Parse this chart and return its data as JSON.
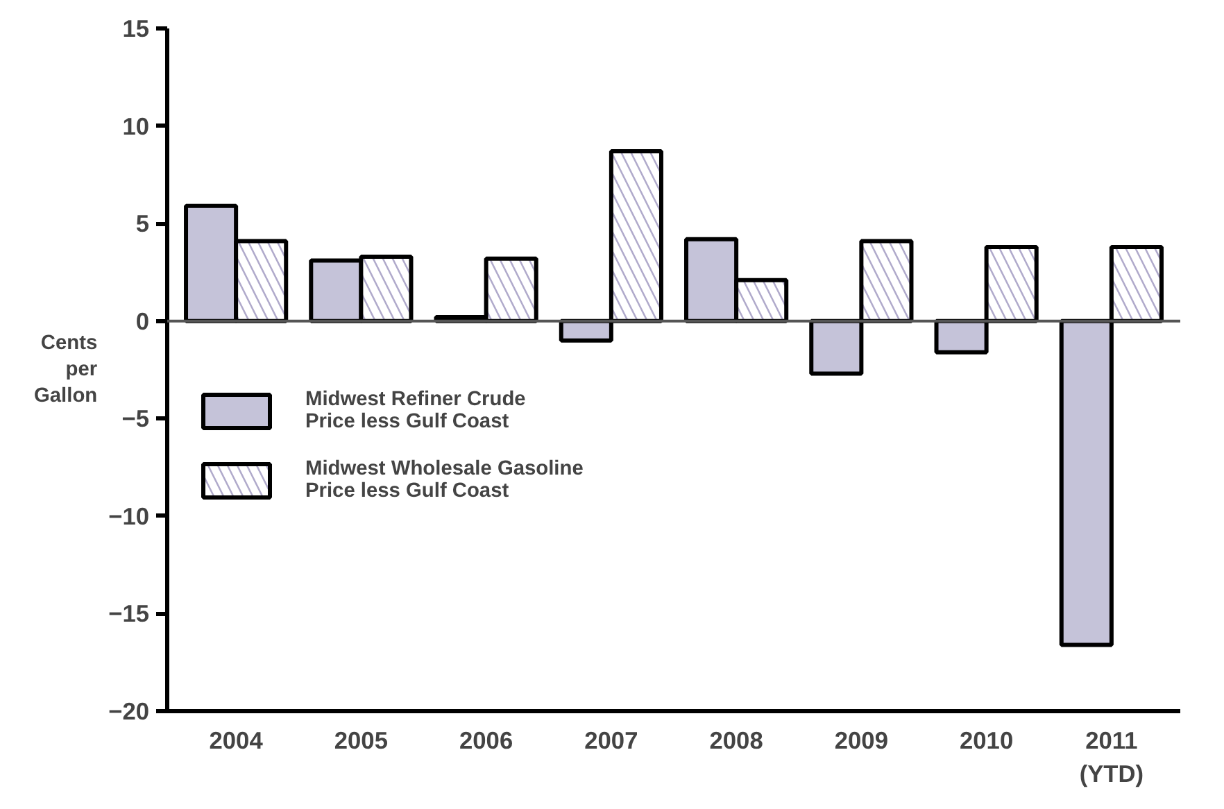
{
  "chart_data": {
    "type": "bar",
    "ylabel": "Cents\nper\nGallon",
    "categories": [
      "2004",
      "2005",
      "2006",
      "2007",
      "2008",
      "2009",
      "2010",
      "2011\n(YTD)"
    ],
    "series": [
      {
        "name": "Midwest Refiner Crude\nPrice less Gulf Coast",
        "color": "#c5c3d9",
        "values": [
          5.9,
          3.1,
          0.2,
          -1.0,
          4.2,
          -2.7,
          -1.6,
          -16.6
        ]
      },
      {
        "name": "Midwest Wholesale Gasoline\nPrice less Gulf Coast",
        "color": "#b0aacb",
        "values": [
          4.1,
          3.3,
          3.2,
          8.7,
          2.1,
          4.1,
          3.8,
          3.8
        ]
      }
    ],
    "ylim": [
      -20,
      15
    ],
    "yticks": [
      -20,
      -15,
      -10,
      -5,
      0,
      5,
      10,
      15
    ],
    "ref_lines": [
      {
        "axis": "y",
        "value": 0
      }
    ],
    "grid": false,
    "legend": "left"
  }
}
